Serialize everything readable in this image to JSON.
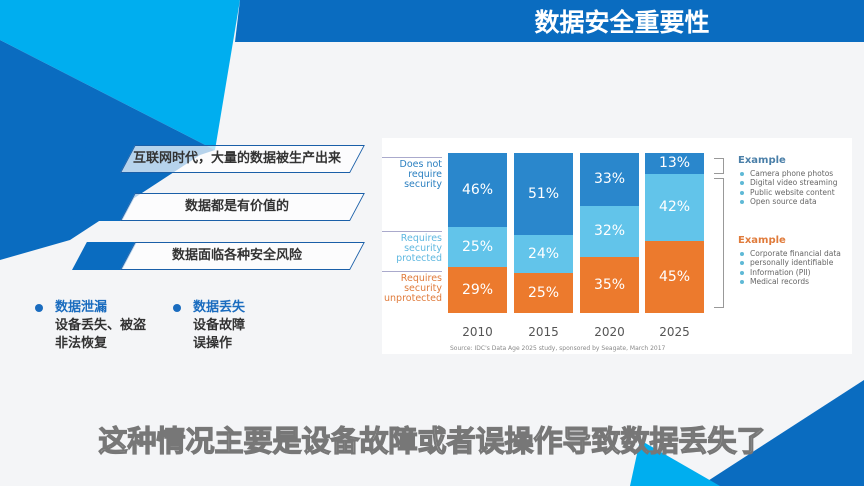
{
  "slide": {
    "title": "数据安全重要性",
    "points": [
      "互联网时代，大量的数据被生产出来",
      "数据都是有价值的",
      "数据面临各种安全风险"
    ],
    "bullets": [
      {
        "heading": "数据泄漏",
        "lines": [
          "设备丢失、被盗",
          "非法恢复"
        ]
      },
      {
        "heading": "数据丢失",
        "lines": [
          "设备故障",
          "误操作"
        ]
      }
    ],
    "subtitle": "这种情况主要是设备故障或者误操作导致数据丢失了",
    "colors": {
      "dark_blue": "#0a6cc0",
      "light_blue": "#00aeef"
    }
  },
  "chart_data": {
    "type": "bar",
    "stacked": true,
    "categories": [
      "2010",
      "2015",
      "2020",
      "2025"
    ],
    "series": [
      {
        "name": "Requires security unprotected",
        "label": [
          "Requires",
          "security",
          "unprotected"
        ],
        "color": "#ec7a2d",
        "values": [
          29,
          25,
          35,
          45
        ]
      },
      {
        "name": "Requires security protected",
        "label": [
          "Requires",
          "security",
          "protected"
        ],
        "color": "#62c4ea",
        "values": [
          25,
          24,
          32,
          42
        ]
      },
      {
        "name": "Does not require security",
        "label": [
          "Does not",
          "require",
          "security"
        ],
        "color": "#2a87cc",
        "values": [
          46,
          51,
          33,
          13
        ]
      }
    ],
    "value_suffix": "%",
    "ylim": [
      0,
      100
    ],
    "legend": [
      {
        "title": "Example",
        "color": "#4a7fa8",
        "items": [
          "Camera phone photos",
          "Digital video streaming",
          "Public website content",
          "Open source data"
        ]
      },
      {
        "title": "Example",
        "color": "#e07b3b",
        "items": [
          "Corporate financial data",
          "personally identifiable",
          "Information (PII)",
          "Medical records"
        ]
      }
    ],
    "source": "Source: IDC's Data Age 2025 study, sponsored by Seagate, March 2017"
  }
}
